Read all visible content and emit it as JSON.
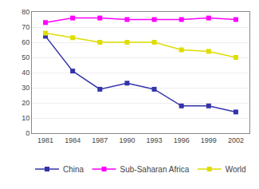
{
  "chart_data": {
    "type": "line",
    "x": [
      1981,
      1984,
      1987,
      1990,
      1993,
      1996,
      1999,
      2002
    ],
    "series": [
      {
        "name": "China",
        "color": "#3333aa",
        "values": [
          64,
          41,
          29,
          33,
          29,
          18,
          18,
          14
        ]
      },
      {
        "name": "Sub-Saharan Africa",
        "color": "#ff00ff",
        "values": [
          73,
          76,
          76,
          75,
          75,
          75,
          76,
          75
        ]
      },
      {
        "name": "World",
        "color": "#dddd00",
        "values": [
          66,
          63,
          60,
          60,
          60,
          55,
          54,
          50
        ]
      }
    ],
    "marker": "square",
    "xlim": [
      1979.5,
      2003.5
    ],
    "xticks": [
      1981,
      1984,
      1987,
      1990,
      1993,
      1996,
      1999,
      2002
    ],
    "ylim": [
      0,
      80
    ],
    "yticks": [
      0,
      10,
      20,
      30,
      40,
      50,
      60,
      70,
      80
    ],
    "grid": "y",
    "legend": "bottom"
  }
}
